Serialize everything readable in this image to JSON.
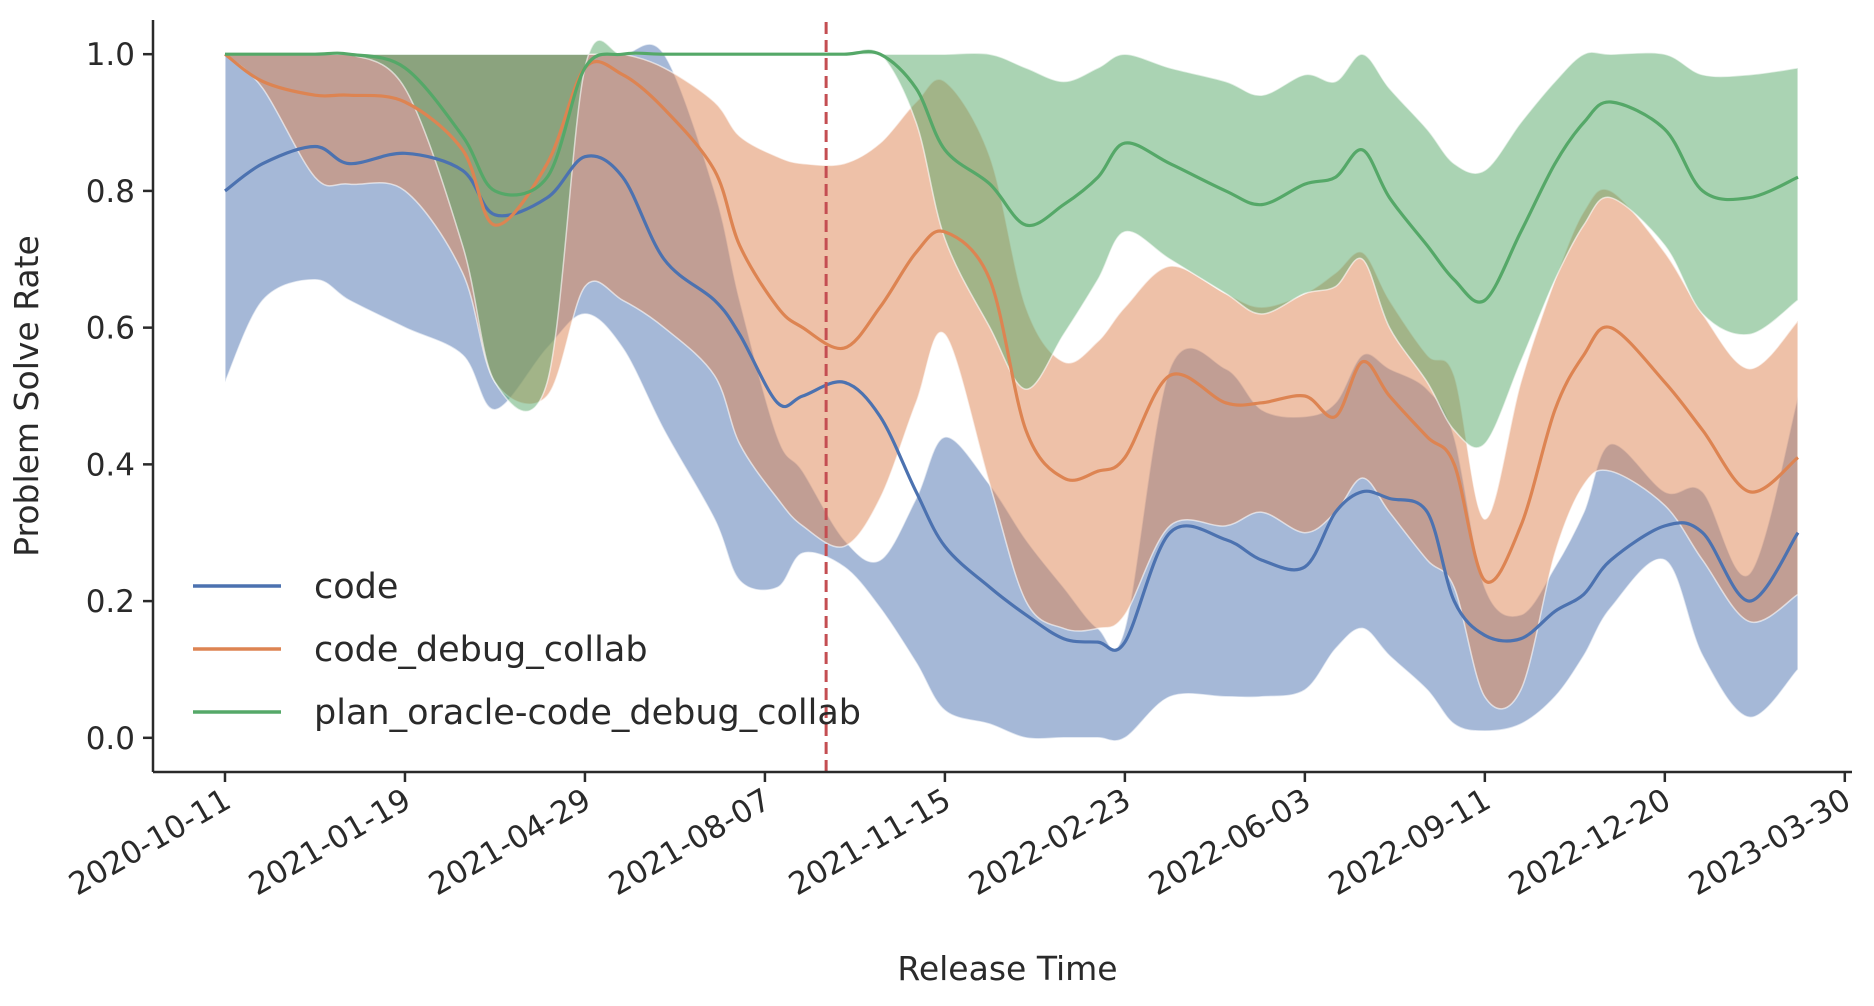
{
  "chart_data": {
    "type": "line",
    "xlabel": "Release Time",
    "ylabel": "Problem Solve Rate",
    "ylim": [
      -0.05,
      1.05
    ],
    "xlim": [
      "2020-09-01",
      "2023-04-03"
    ],
    "x_ticks": [
      "2020-10-11",
      "2021-01-19",
      "2021-04-29",
      "2021-08-07",
      "2021-11-15",
      "2022-02-23",
      "2022-06-03",
      "2022-09-11",
      "2022-12-20",
      "2023-03-30"
    ],
    "y_ticks": [
      0.0,
      0.2,
      0.4,
      0.6,
      0.8,
      1.0
    ],
    "y_tick_labels": [
      "0.0",
      "0.2",
      "0.4",
      "0.6",
      "0.8",
      "1.0"
    ],
    "grid": false,
    "legend_position": "lower-left",
    "vline": {
      "x": "2021-09-10",
      "style": "dashed",
      "color": "#c44e52"
    },
    "series": [
      {
        "name": "code",
        "color": "#4c72b0",
        "x": [
          "2020-10-11",
          "2020-11-01",
          "2020-11-30",
          "2020-12-19",
          "2021-01-19",
          "2021-02-20",
          "2021-03-10",
          "2021-04-08",
          "2021-04-29",
          "2021-05-20",
          "2021-06-12",
          "2021-07-10",
          "2021-07-24",
          "2021-08-14",
          "2021-08-28",
          "2021-09-20",
          "2021-10-10",
          "2021-10-30",
          "2021-11-15",
          "2021-12-10",
          "2021-12-30",
          "2022-01-20",
          "2022-02-08",
          "2022-02-23",
          "2022-03-20",
          "2022-04-20",
          "2022-05-10",
          "2022-06-03",
          "2022-06-20",
          "2022-07-05",
          "2022-07-20",
          "2022-08-10",
          "2022-08-25",
          "2022-09-11",
          "2022-10-01",
          "2022-10-20",
          "2022-11-05",
          "2022-11-20",
          "2022-12-20",
          "2023-01-10",
          "2023-02-05",
          "2023-03-04"
        ],
        "values": [
          0.8,
          0.84,
          0.865,
          0.84,
          0.855,
          0.83,
          0.765,
          0.79,
          0.85,
          0.82,
          0.7,
          0.64,
          0.59,
          0.49,
          0.5,
          0.52,
          0.47,
          0.36,
          0.28,
          0.22,
          0.18,
          0.145,
          0.14,
          0.14,
          0.3,
          0.29,
          0.26,
          0.25,
          0.33,
          0.36,
          0.35,
          0.33,
          0.2,
          0.15,
          0.145,
          0.185,
          0.21,
          0.26,
          0.31,
          0.3,
          0.2,
          0.3
        ],
        "lower": [
          0.52,
          0.64,
          0.67,
          0.64,
          0.6,
          0.56,
          0.48,
          0.57,
          0.62,
          0.57,
          0.45,
          0.32,
          0.23,
          0.22,
          0.27,
          0.25,
          0.19,
          0.11,
          0.04,
          0.02,
          0.0,
          0.0,
          0.0,
          0.0,
          0.06,
          0.06,
          0.06,
          0.07,
          0.13,
          0.16,
          0.12,
          0.07,
          0.02,
          0.01,
          0.02,
          0.06,
          0.12,
          0.19,
          0.26,
          0.12,
          0.03,
          0.1
        ],
        "upper": [
          1.0,
          1.0,
          1.0,
          1.0,
          1.0,
          1.0,
          1.0,
          1.0,
          1.0,
          1.0,
          1.0,
          0.8,
          0.64,
          0.44,
          0.39,
          0.29,
          0.26,
          0.35,
          0.44,
          0.37,
          0.29,
          0.22,
          0.16,
          0.16,
          0.54,
          0.54,
          0.48,
          0.47,
          0.49,
          0.56,
          0.54,
          0.51,
          0.44,
          0.22,
          0.18,
          0.25,
          0.33,
          0.43,
          0.36,
          0.36,
          0.24,
          0.5
        ]
      },
      {
        "name": "code_debug_collab",
        "color": "#dd8452",
        "x": [
          "2020-10-11",
          "2020-11-01",
          "2020-11-30",
          "2020-12-19",
          "2021-01-19",
          "2021-02-20",
          "2021-03-10",
          "2021-04-08",
          "2021-04-29",
          "2021-05-20",
          "2021-06-12",
          "2021-07-10",
          "2021-07-24",
          "2021-08-14",
          "2021-08-28",
          "2021-09-20",
          "2021-10-10",
          "2021-10-30",
          "2021-11-15",
          "2021-12-10",
          "2021-12-30",
          "2022-01-20",
          "2022-02-08",
          "2022-02-23",
          "2022-03-20",
          "2022-04-20",
          "2022-05-10",
          "2022-06-03",
          "2022-06-20",
          "2022-07-05",
          "2022-07-20",
          "2022-08-10",
          "2022-08-25",
          "2022-09-11",
          "2022-10-01",
          "2022-10-20",
          "2022-11-05",
          "2022-11-20",
          "2022-12-20",
          "2023-01-10",
          "2023-02-05",
          "2023-03-04"
        ],
        "values": [
          1.0,
          0.96,
          0.94,
          0.94,
          0.93,
          0.86,
          0.75,
          0.84,
          0.98,
          0.97,
          0.92,
          0.83,
          0.72,
          0.63,
          0.6,
          0.57,
          0.63,
          0.71,
          0.74,
          0.67,
          0.45,
          0.38,
          0.39,
          0.41,
          0.53,
          0.49,
          0.49,
          0.5,
          0.47,
          0.55,
          0.5,
          0.44,
          0.4,
          0.23,
          0.31,
          0.48,
          0.56,
          0.6,
          0.52,
          0.45,
          0.36,
          0.41
        ],
        "lower": [
          1.0,
          0.95,
          0.82,
          0.81,
          0.8,
          0.68,
          0.52,
          0.5,
          0.66,
          0.64,
          0.6,
          0.53,
          0.43,
          0.35,
          0.31,
          0.28,
          0.35,
          0.49,
          0.59,
          0.37,
          0.2,
          0.16,
          0.16,
          0.18,
          0.31,
          0.31,
          0.33,
          0.3,
          0.33,
          0.38,
          0.33,
          0.26,
          0.22,
          0.06,
          0.07,
          0.27,
          0.37,
          0.39,
          0.34,
          0.26,
          0.17,
          0.21
        ],
        "upper": [
          1.0,
          1.0,
          1.0,
          1.0,
          1.0,
          1.0,
          1.0,
          1.0,
          1.0,
          1.0,
          0.98,
          0.93,
          0.88,
          0.85,
          0.84,
          0.84,
          0.87,
          0.93,
          0.96,
          0.85,
          0.63,
          0.55,
          0.58,
          0.63,
          0.69,
          0.65,
          0.63,
          0.65,
          0.68,
          0.71,
          0.64,
          0.56,
          0.53,
          0.32,
          0.52,
          0.67,
          0.77,
          0.8,
          0.71,
          0.62,
          0.54,
          0.61
        ]
      },
      {
        "name": "plan_oracle-code_debug_collab",
        "color": "#55a868",
        "x": [
          "2020-10-11",
          "2020-11-01",
          "2020-11-30",
          "2020-12-19",
          "2021-01-19",
          "2021-02-20",
          "2021-03-10",
          "2021-04-08",
          "2021-04-29",
          "2021-05-20",
          "2021-06-12",
          "2021-07-10",
          "2021-07-24",
          "2021-08-14",
          "2021-08-28",
          "2021-09-20",
          "2021-10-10",
          "2021-10-30",
          "2021-11-15",
          "2021-12-10",
          "2021-12-30",
          "2022-01-20",
          "2022-02-08",
          "2022-02-23",
          "2022-03-20",
          "2022-04-20",
          "2022-05-10",
          "2022-06-03",
          "2022-06-20",
          "2022-07-05",
          "2022-07-20",
          "2022-08-10",
          "2022-08-25",
          "2022-09-11",
          "2022-10-01",
          "2022-10-20",
          "2022-11-05",
          "2022-11-20",
          "2022-12-20",
          "2023-01-10",
          "2023-02-05",
          "2023-03-04"
        ],
        "values": [
          1.0,
          1.0,
          1.0,
          1.0,
          0.98,
          0.88,
          0.8,
          0.82,
          0.98,
          1.0,
          1.0,
          1.0,
          1.0,
          1.0,
          1.0,
          1.0,
          1.0,
          0.95,
          0.86,
          0.81,
          0.75,
          0.78,
          0.82,
          0.87,
          0.84,
          0.8,
          0.78,
          0.81,
          0.82,
          0.86,
          0.79,
          0.72,
          0.67,
          0.64,
          0.74,
          0.84,
          0.9,
          0.93,
          0.89,
          0.8,
          0.79,
          0.82
        ],
        "lower": [
          1.0,
          1.0,
          1.0,
          1.0,
          0.95,
          0.72,
          0.52,
          0.52,
          0.98,
          1.0,
          1.0,
          1.0,
          1.0,
          1.0,
          1.0,
          1.0,
          1.0,
          0.9,
          0.73,
          0.6,
          0.51,
          0.59,
          0.67,
          0.74,
          0.7,
          0.65,
          0.62,
          0.65,
          0.66,
          0.7,
          0.6,
          0.52,
          0.45,
          0.43,
          0.55,
          0.67,
          0.75,
          0.79,
          0.72,
          0.62,
          0.59,
          0.64
        ],
        "upper": [
          1.0,
          1.0,
          1.0,
          1.0,
          1.0,
          1.0,
          1.0,
          1.0,
          1.0,
          1.0,
          1.0,
          1.0,
          1.0,
          1.0,
          1.0,
          1.0,
          1.0,
          1.0,
          1.0,
          1.0,
          0.98,
          0.96,
          0.98,
          1.0,
          0.98,
          0.96,
          0.94,
          0.97,
          0.96,
          1.0,
          0.95,
          0.89,
          0.84,
          0.83,
          0.9,
          0.96,
          1.0,
          1.0,
          1.0,
          0.97,
          0.97,
          0.98
        ]
      }
    ]
  }
}
